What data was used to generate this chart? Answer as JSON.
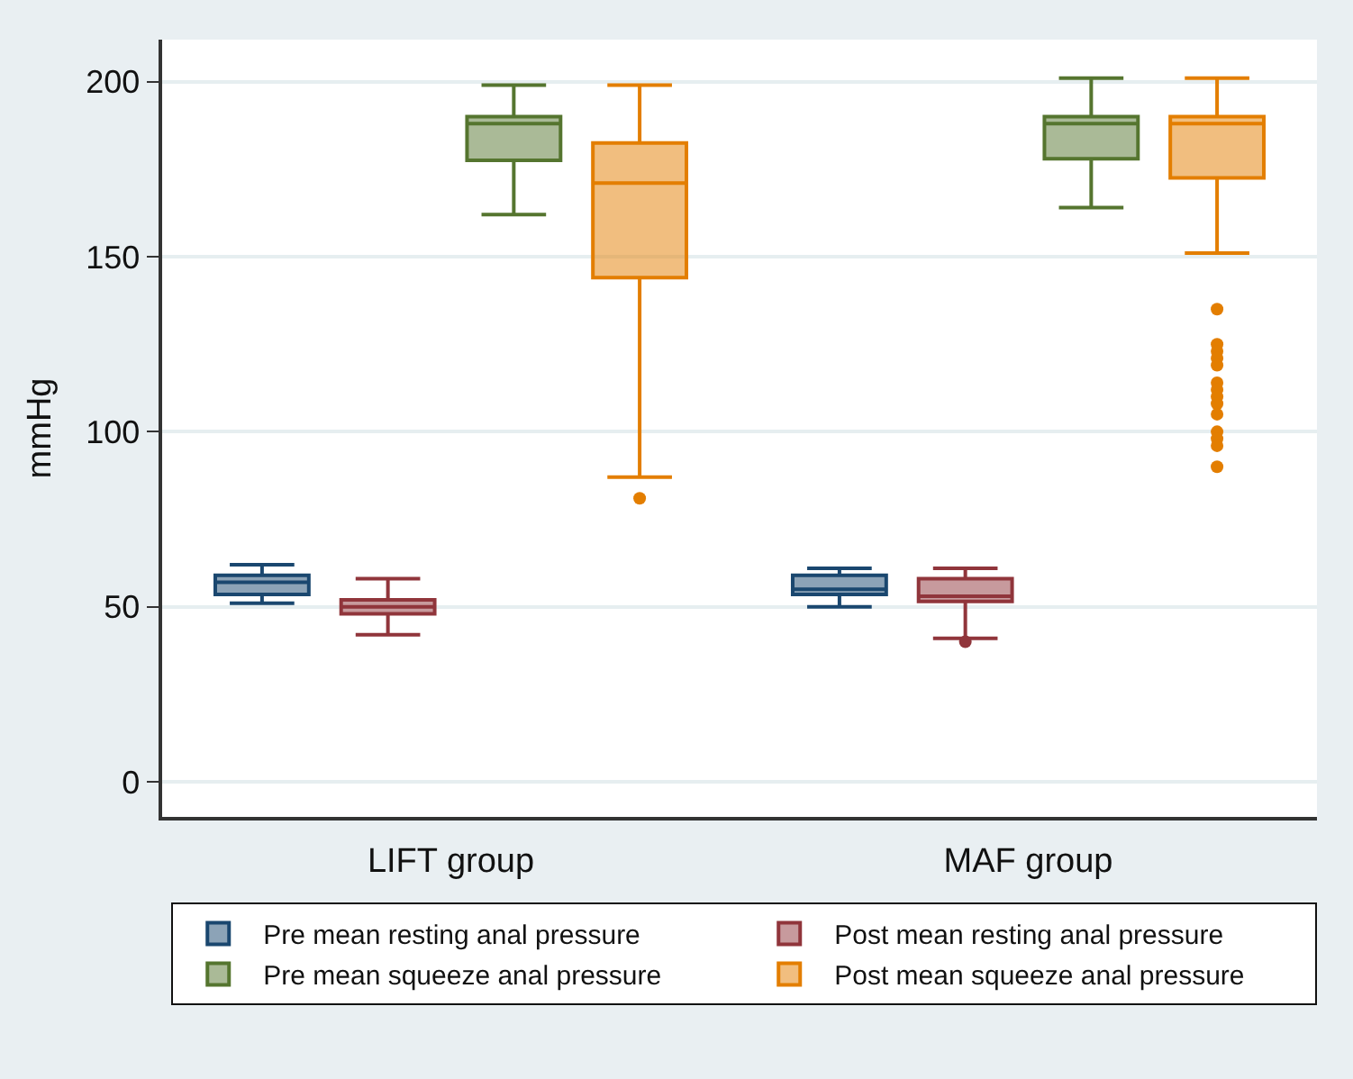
{
  "chart_data": {
    "type": "box",
    "ylabel": "mmHg",
    "categories": [
      "LIFT group",
      "MAF group"
    ],
    "ylim": [
      -10,
      212
    ],
    "yticks": [
      0,
      50,
      100,
      150,
      200
    ],
    "grid": "y",
    "legend": "bottom",
    "marker": "circle",
    "series": [
      {
        "name": "Pre mean resting anal pressure",
        "color": "#1a476f",
        "boxes": [
          {
            "low": 51,
            "q1": 53.5,
            "median": 57,
            "q3": 59,
            "high": 62
          },
          {
            "low": 50,
            "q1": 53.5,
            "median": 55,
            "q3": 59,
            "high": 61
          }
        ]
      },
      {
        "name": "Post mean resting anal pressure",
        "color": "#90353b",
        "boxes": [
          {
            "low": 42,
            "q1": 48,
            "median": 50,
            "q3": 52,
            "high": 58
          },
          {
            "low": 41,
            "q1": 51.5,
            "median": 53,
            "q3": 58,
            "high": 61,
            "outliers": [
              40
            ]
          }
        ]
      },
      {
        "name": "Pre mean squeeze anal pressure",
        "color": "#55752f",
        "boxes": [
          {
            "low": 162,
            "q1": 177.5,
            "median": 188,
            "q3": 190,
            "high": 199
          },
          {
            "low": 164,
            "q1": 178,
            "median": 188,
            "q3": 190,
            "high": 201
          }
        ]
      },
      {
        "name": "Post mean squeeze anal pressure",
        "color": "#e37e00",
        "boxes": [
          {
            "low": 87,
            "q1": 144,
            "median": 171,
            "q3": 182.5,
            "high": 199,
            "outliers": [
              81
            ]
          },
          {
            "low": 151,
            "q1": 172.5,
            "median": 188,
            "q3": 190,
            "high": 201,
            "outliers": [
              135,
              125,
              123,
              121,
              119,
              114,
              112,
              110,
              108,
              105,
              100,
              98,
              96,
              90
            ]
          }
        ]
      }
    ]
  }
}
